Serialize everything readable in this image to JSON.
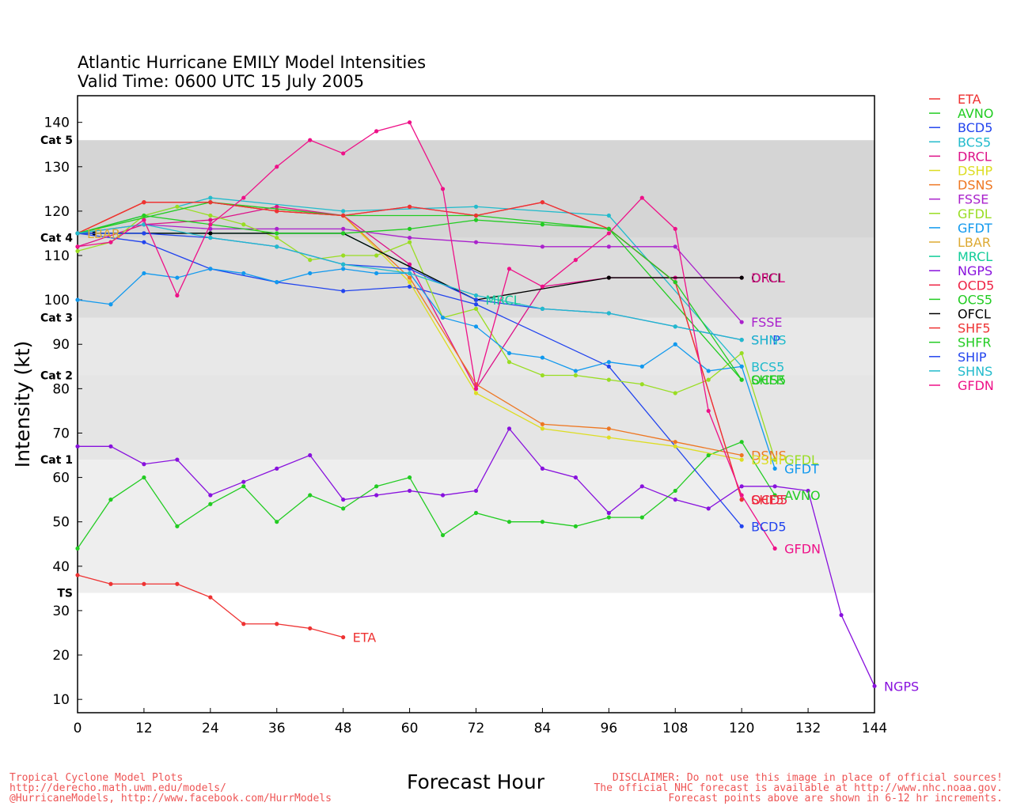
{
  "chart_data": {
    "type": "line",
    "title": "Atlantic Hurricane EMILY Model Intensities",
    "subtitle": "Valid Time: 0600 UTC 15 July 2005",
    "xlabel": "Forecast Hour",
    "ylabel": "Intensity (kt)",
    "xlim": [
      0,
      144
    ],
    "ylim": [
      7,
      146
    ],
    "x_ticks": [
      0,
      12,
      24,
      36,
      48,
      60,
      72,
      84,
      96,
      108,
      120,
      132,
      144
    ],
    "y_ticks": [
      10,
      20,
      30,
      40,
      50,
      60,
      70,
      80,
      90,
      100,
      110,
      120,
      130,
      140
    ],
    "grid": false,
    "legend_position": "right",
    "category_bands": [
      {
        "label": "TS",
        "low": 34,
        "high": 64,
        "color": "#eeeeee"
      },
      {
        "label": "Cat 1",
        "low": 64,
        "high": 83,
        "color": "#e5e5e5"
      },
      {
        "label": "Cat 2",
        "low": 83,
        "high": 96,
        "color": "#e8e8e8"
      },
      {
        "label": "Cat 3",
        "low": 96,
        "high": 114,
        "color": "#dcdcdc"
      },
      {
        "label": "Cat 4",
        "low": 114,
        "high": 136,
        "color": "#d5d5d5"
      },
      {
        "label": "Cat 5",
        "low": 136,
        "high": 146,
        "color": "#ffffff"
      }
    ],
    "series": [
      {
        "name": "ETA",
        "color": "#ee3333",
        "x": [
          0,
          6,
          12,
          18,
          24,
          30,
          36,
          42,
          48
        ],
        "y": [
          38,
          36,
          36,
          36,
          33,
          27,
          27,
          26,
          24
        ]
      },
      {
        "name": "AVNO",
        "color": "#22cc22",
        "x": [
          0,
          6,
          12,
          18,
          24,
          30,
          36,
          42,
          48,
          54,
          60,
          66,
          72,
          78,
          84,
          90,
          96,
          102,
          108,
          114,
          120,
          126
        ],
        "y": [
          44,
          55,
          60,
          49,
          54,
          58,
          50,
          56,
          53,
          58,
          60,
          47,
          52,
          50,
          50,
          49,
          51,
          51,
          57,
          65,
          68,
          56
        ]
      },
      {
        "name": "BCD5",
        "color": "#2244ee",
        "x": [
          0,
          12,
          24,
          36,
          48,
          60,
          72,
          96,
          120
        ],
        "y": [
          115,
          113,
          107,
          104,
          102,
          103,
          99,
          85,
          49
        ]
      },
      {
        "name": "BCS5",
        "color": "#22bbcc",
        "x": [
          0,
          24,
          48,
          72,
          96,
          120
        ],
        "y": [
          115,
          123,
          120,
          121,
          119,
          85
        ]
      },
      {
        "name": "DRCL",
        "color": "#dd1188",
        "x": [
          0,
          12,
          24,
          36,
          48,
          60,
          72,
          84,
          96,
          108,
          120
        ],
        "y": [
          112,
          117,
          118,
          121,
          119,
          108,
          80,
          103,
          105,
          105,
          105
        ]
      },
      {
        "name": "DSHP",
        "color": "#dddd22",
        "x": [
          0,
          12,
          24,
          36,
          48,
          60,
          72,
          84,
          96,
          108,
          120
        ],
        "y": [
          115,
          122,
          122,
          120,
          119,
          104,
          79,
          71,
          69,
          67,
          64
        ]
      },
      {
        "name": "DSNS",
        "color": "#ee7722",
        "x": [
          0,
          12,
          24,
          36,
          48,
          60,
          72,
          84,
          96,
          108,
          120
        ],
        "y": [
          115,
          122,
          122,
          120,
          119,
          105,
          81,
          72,
          71,
          68,
          65
        ]
      },
      {
        "name": "FSSE",
        "color": "#aa22cc",
        "x": [
          0,
          12,
          24,
          36,
          48,
          60,
          72,
          84,
          96,
          108,
          120
        ],
        "y": [
          115,
          117,
          116,
          116,
          116,
          114,
          113,
          112,
          112,
          112,
          95
        ]
      },
      {
        "name": "GFDL",
        "color": "#99dd22",
        "x": [
          0,
          6,
          12,
          18,
          24,
          30,
          36,
          42,
          48,
          54,
          60,
          66,
          72,
          78,
          84,
          90,
          96,
          102,
          108,
          114,
          120,
          126
        ],
        "y": [
          111,
          113,
          119,
          121,
          119,
          117,
          114,
          109,
          110,
          110,
          113,
          96,
          98,
          86,
          83,
          83,
          82,
          81,
          79,
          82,
          88,
          64
        ]
      },
      {
        "name": "GFDT",
        "color": "#1199ee",
        "x": [
          0,
          6,
          12,
          18,
          24,
          30,
          36,
          42,
          48,
          54,
          60,
          66,
          72,
          78,
          84,
          90,
          96,
          102,
          108,
          114,
          120,
          126
        ],
        "y": [
          100,
          99,
          106,
          105,
          107,
          106,
          104,
          106,
          107,
          106,
          106,
          96,
          94,
          88,
          87,
          84,
          86,
          85,
          90,
          84,
          85,
          62
        ]
      },
      {
        "name": "LBAR",
        "color": "#ddaa33",
        "x": [
          0
        ],
        "y": [
          115
        ]
      },
      {
        "name": "MRCL",
        "color": "#11cc99",
        "x": [
          0,
          24,
          48,
          72
        ],
        "y": [
          115,
          115,
          115,
          100
        ]
      },
      {
        "name": "NGPS",
        "color": "#8811dd",
        "x": [
          0,
          6,
          12,
          18,
          24,
          30,
          36,
          42,
          48,
          54,
          60,
          66,
          72,
          78,
          84,
          90,
          96,
          102,
          108,
          114,
          120,
          126,
          132,
          138,
          144
        ],
        "y": [
          67,
          67,
          63,
          64,
          56,
          59,
          62,
          65,
          55,
          56,
          57,
          56,
          57,
          71,
          62,
          60,
          52,
          58,
          55,
          53,
          58,
          58,
          57,
          29,
          13
        ]
      },
      {
        "name": "OCD5",
        "color": "#ee2244",
        "x": [
          0,
          12,
          24,
          36,
          48,
          60,
          72,
          84,
          96,
          108,
          120
        ],
        "y": [
          115,
          122,
          122,
          120,
          119,
          121,
          119,
          122,
          116,
          104,
          55
        ]
      },
      {
        "name": "OCS5",
        "color": "#22cc22",
        "x": [
          0,
          24,
          48,
          72,
          96,
          120
        ],
        "y": [
          115,
          122,
          119,
          119,
          116,
          82
        ]
      },
      {
        "name": "OFCL",
        "color": "#000000",
        "x": [
          0,
          3,
          12,
          24,
          48,
          72,
          96,
          120
        ],
        "y": [
          115,
          115,
          115,
          115,
          115,
          100,
          105,
          105
        ]
      },
      {
        "name": "SHF5",
        "color": "#ee3333",
        "x": [
          0,
          12,
          24,
          36,
          48,
          60,
          72,
          84,
          96,
          108,
          120
        ],
        "y": [
          115,
          122,
          122,
          120,
          119,
          121,
          119,
          122,
          116,
          104,
          55
        ]
      },
      {
        "name": "SHFR",
        "color": "#22cc22",
        "x": [
          0,
          12,
          24,
          36,
          48,
          60,
          72,
          84,
          96,
          108,
          120
        ],
        "y": [
          115,
          119,
          117,
          115,
          115,
          116,
          118,
          117,
          116,
          104,
          82
        ]
      },
      {
        "name": "SHIP",
        "color": "#2244ee",
        "x": [
          0,
          12,
          24,
          36,
          48,
          60,
          72,
          84,
          96,
          108,
          120
        ],
        "y": [
          115,
          115,
          114,
          112,
          108,
          107,
          100,
          98,
          97,
          94,
          91
        ]
      },
      {
        "name": "SHNS",
        "color": "#22bbcc",
        "x": [
          0,
          12,
          24,
          36,
          48,
          60,
          72,
          84,
          96,
          108,
          120
        ],
        "y": [
          115,
          117,
          114,
          112,
          108,
          106,
          101,
          98,
          97,
          94,
          91
        ]
      },
      {
        "name": "GFDN",
        "color": "#ee1188",
        "x": [
          0,
          6,
          12,
          18,
          24,
          30,
          36,
          42,
          48,
          54,
          60,
          66,
          72,
          78,
          84,
          90,
          96,
          102,
          108,
          114,
          120,
          126
        ],
        "y": [
          112,
          113,
          118,
          101,
          117,
          123,
          130,
          136,
          133,
          138,
          140,
          125,
          80,
          107,
          103,
          109,
          115,
          123,
          116,
          75,
          56,
          44
        ]
      }
    ],
    "end_labels": [
      {
        "text": "ETA",
        "series": "ETA"
      },
      {
        "text": "SHFR",
        "series": "SHFR"
      },
      {
        "text": "MRCL",
        "series": "MRCL"
      },
      {
        "text": "LBAR",
        "series": "LBAR"
      },
      {
        "text": "OFCL",
        "series": "OFCL"
      },
      {
        "text": "DRCL",
        "series": "DRCL"
      },
      {
        "text": "FSSE",
        "series": "FSSE"
      },
      {
        "text": "SHIP",
        "series": "SHIP"
      },
      {
        "text": "SHNS",
        "series": "SHNS"
      },
      {
        "text": "BCS5",
        "series": "BCS5"
      },
      {
        "text": "OCS5",
        "series": "OCS5"
      },
      {
        "text": "SHF5",
        "series": "SHF5"
      },
      {
        "text": "DSNS",
        "series": "DSNS"
      },
      {
        "text": "DSHP",
        "series": "DSHP"
      },
      {
        "text": "GFDL",
        "series": "GFDL"
      },
      {
        "text": "GFDT",
        "series": "GFDT"
      },
      {
        "text": "OCD5",
        "series": "OCD5"
      },
      {
        "text": "AVNO",
        "series": "AVNO"
      },
      {
        "text": "BCD5",
        "series": "BCD5"
      },
      {
        "text": "GFDN",
        "series": "GFDN"
      },
      {
        "text": "NGPS",
        "series": "NGPS"
      }
    ]
  },
  "footer": {
    "left": [
      "Tropical Cyclone Model Plots",
      "http://derecho.math.uwm.edu/models/",
      "@HurricaneModels, http://www.facebook.com/HurrModels"
    ],
    "right": [
      "DISCLAIMER: Do not use this image in place of official sources!",
      "The official NHC forecast is available at http://www.nhc.noaa.gov.",
      "Forecast points above are shown in 6-12 hr increments."
    ],
    "color": "#ee5555"
  }
}
